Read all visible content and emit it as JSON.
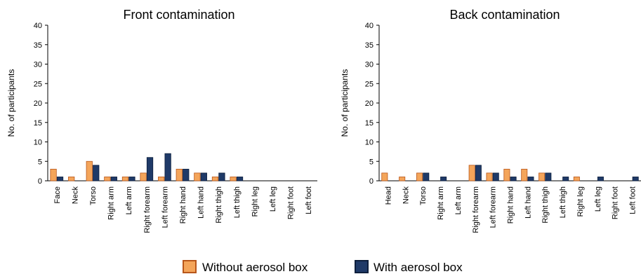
{
  "colors": {
    "without": "#f4a55a",
    "without_edge": "#b8561a",
    "with": "#1f3a68",
    "with_edge": "#0d1f3c"
  },
  "legend": {
    "position": "bottom-center",
    "items": [
      {
        "label": "Without aerosol box"
      },
      {
        "label": "With aerosol box"
      }
    ]
  },
  "chart_data": [
    {
      "type": "bar",
      "title": "Front contamination",
      "xlabel": "",
      "ylabel": "No. of participants",
      "ylim": [
        0,
        40
      ],
      "yticks": [
        "0",
        "5",
        "10",
        "15",
        "20",
        "25",
        "30",
        "35",
        "40"
      ],
      "grid": false,
      "categories": [
        "Face",
        "Neck",
        "Torso",
        "Right arm",
        "Left arm",
        "Right forearm",
        "Left forearm",
        "Right hand",
        "Left hand",
        "Right thigh",
        "Left thigh",
        "Right leg",
        "Left leg",
        "Right foot",
        "Left foot"
      ],
      "series": [
        {
          "name": "Without aerosol box",
          "values": [
            3,
            1,
            5,
            1,
            1,
            2,
            1,
            3,
            2,
            1,
            1,
            0,
            0,
            0,
            0
          ]
        },
        {
          "name": "With aerosol box",
          "values": [
            1,
            0,
            4,
            1,
            1,
            6,
            7,
            3,
            2,
            2,
            1,
            0,
            0,
            0,
            0
          ]
        }
      ]
    },
    {
      "type": "bar",
      "title": "Back contamination",
      "xlabel": "",
      "ylabel": "No. of participants",
      "ylim": [
        0,
        40
      ],
      "yticks": [
        "0",
        "5",
        "10",
        "15",
        "20",
        "25",
        "30",
        "35",
        "40"
      ],
      "grid": false,
      "categories": [
        "Head",
        "Neck",
        "Torso",
        "Right arm",
        "Left arm",
        "Right forearm",
        "Left forearm",
        "Right hand",
        "Left hand",
        "Right thigh",
        "Left thigh",
        "Right leg",
        "Left leg",
        "Right foot",
        "Left foot"
      ],
      "series": [
        {
          "name": "Without aerosol box",
          "values": [
            2,
            1,
            2,
            0,
            0,
            4,
            2,
            3,
            3,
            2,
            0,
            1,
            0,
            0,
            0
          ]
        },
        {
          "name": "With aerosol box",
          "values": [
            0,
            0,
            2,
            1,
            0,
            4,
            2,
            1,
            1,
            2,
            1,
            0,
            1,
            0,
            1
          ]
        }
      ]
    }
  ]
}
